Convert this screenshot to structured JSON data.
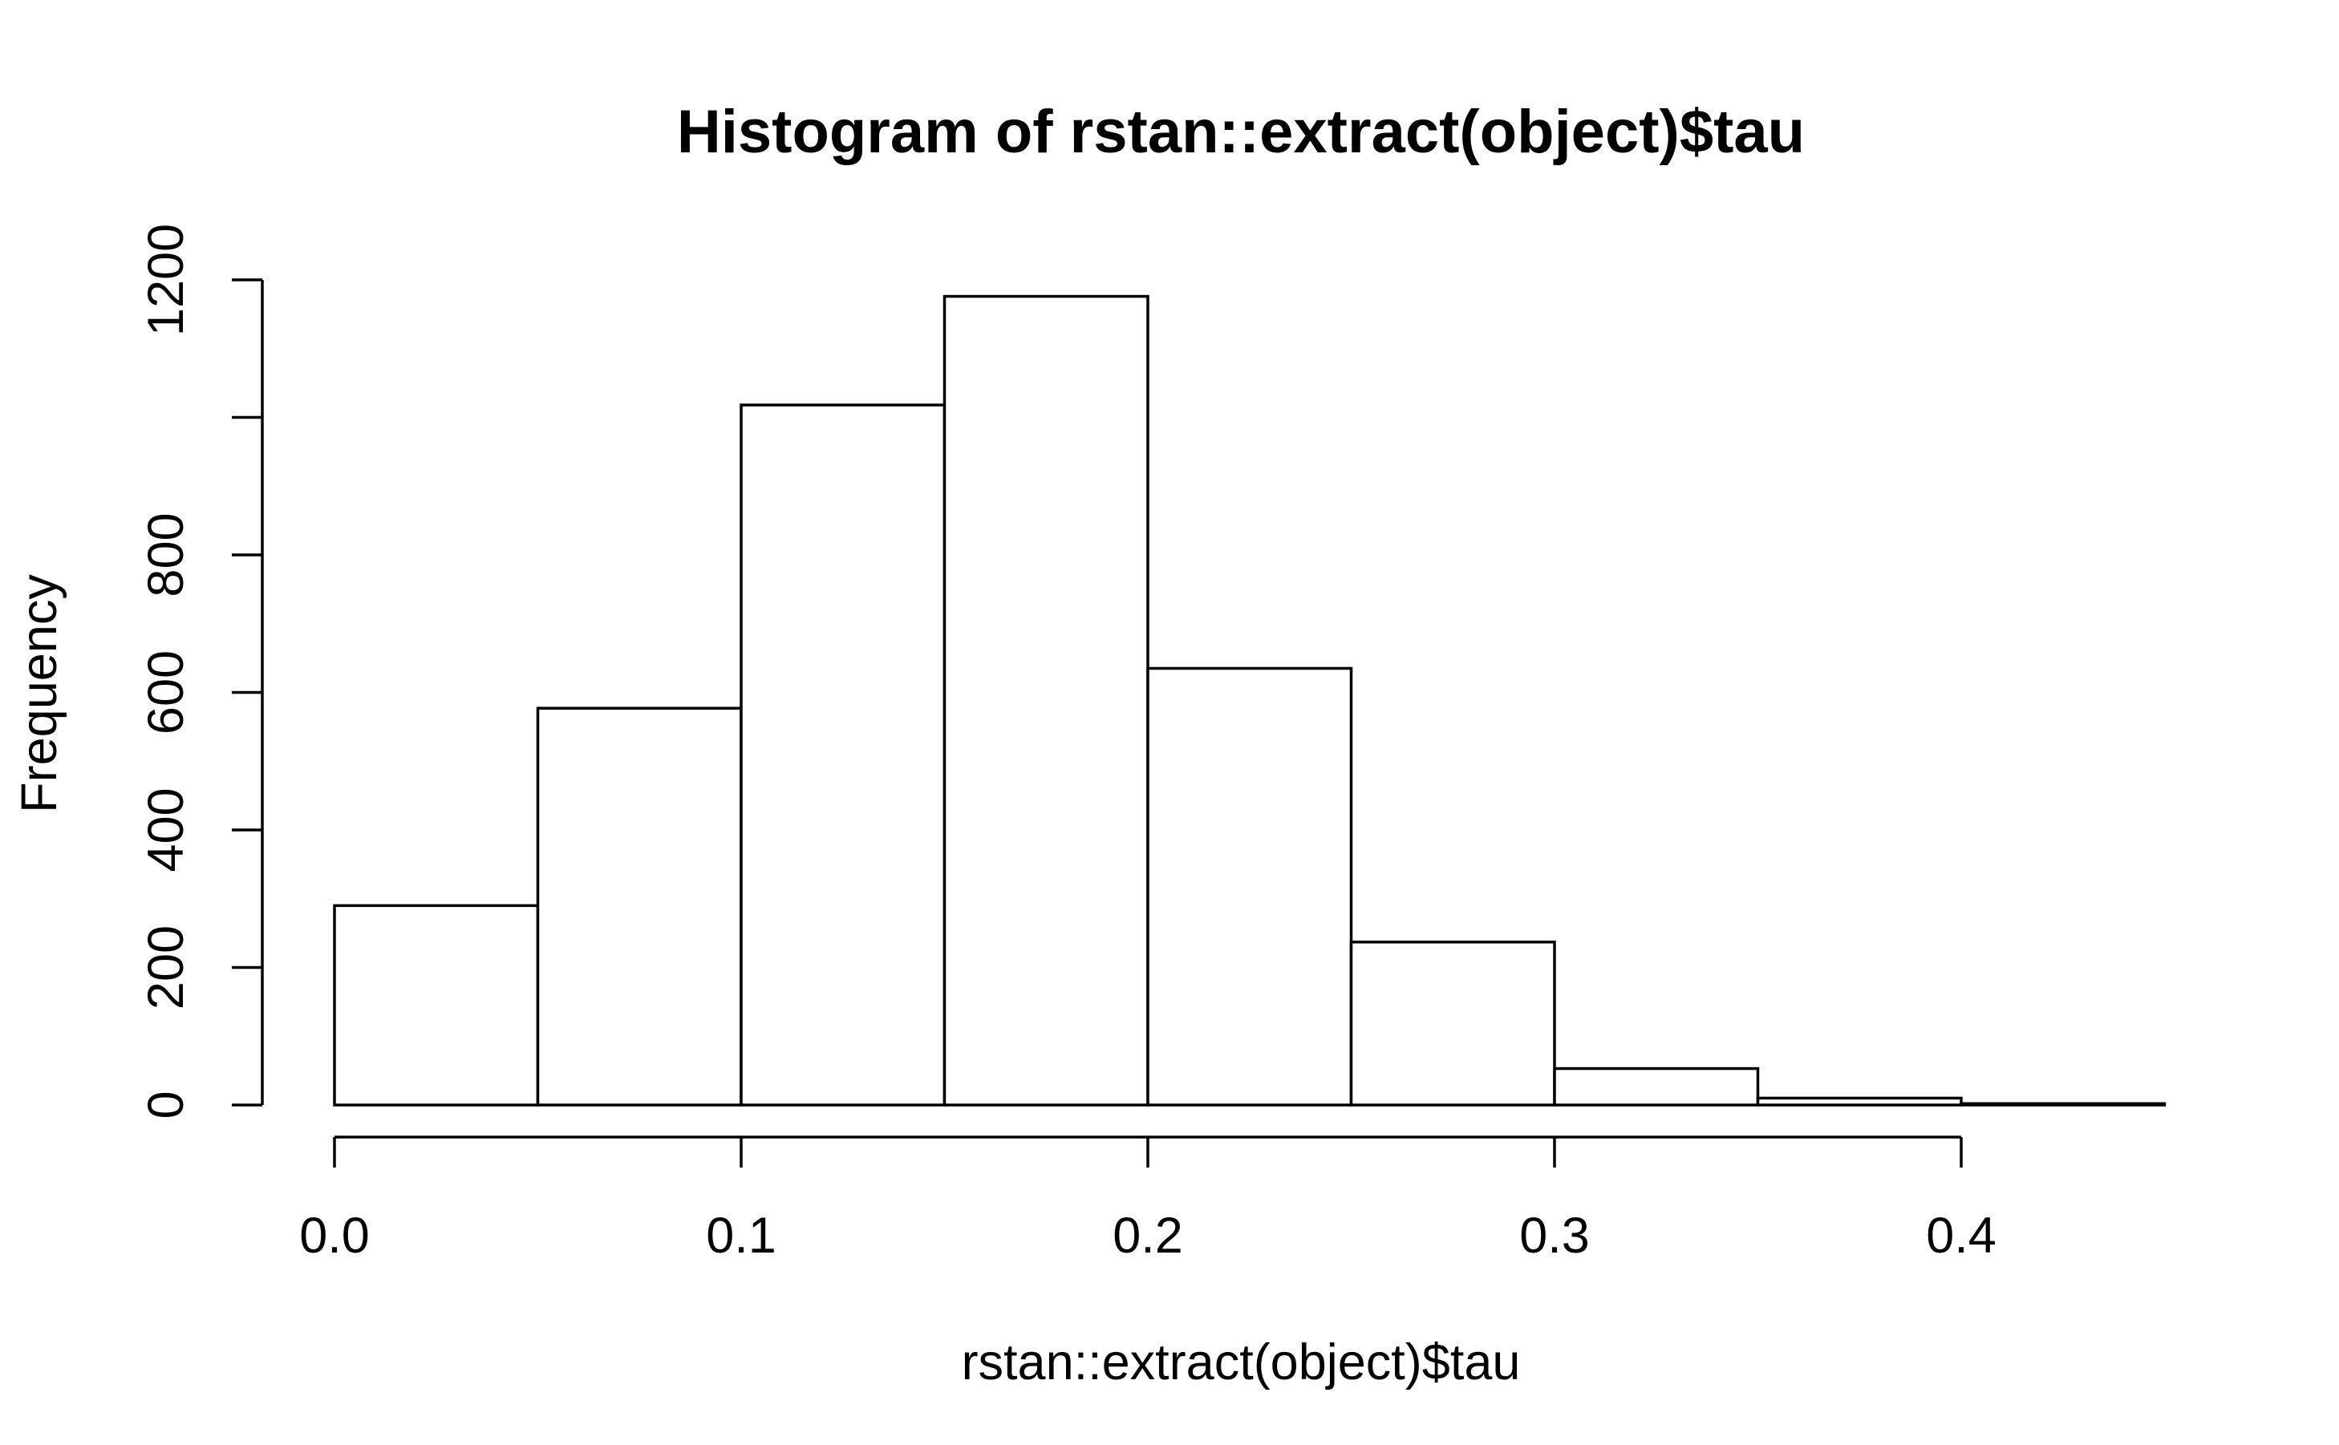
{
  "chart_data": {
    "type": "bar",
    "title": "Histogram of rstan::extract(object)$tau",
    "xlabel": "rstan::extract(object)$tau",
    "ylabel": "Frequency",
    "bins": [
      {
        "start": 0.0,
        "end": 0.05,
        "value": 290
      },
      {
        "start": 0.05,
        "end": 0.1,
        "value": 577
      },
      {
        "start": 0.1,
        "end": 0.15,
        "value": 1018
      },
      {
        "start": 0.15,
        "end": 0.2,
        "value": 1176
      },
      {
        "start": 0.2,
        "end": 0.25,
        "value": 635
      },
      {
        "start": 0.25,
        "end": 0.3,
        "value": 237
      },
      {
        "start": 0.3,
        "end": 0.35,
        "value": 53
      },
      {
        "start": 0.35,
        "end": 0.4,
        "value": 10
      },
      {
        "start": 0.4,
        "end": 0.45,
        "value": 2
      }
    ],
    "xlim": [
      0.0,
      0.45
    ],
    "ylim": [
      0,
      1200
    ],
    "x_ticks": [
      0.0,
      0.1,
      0.2,
      0.3,
      0.4
    ],
    "x_tick_labels": [
      "0.0",
      "0.1",
      "0.2",
      "0.3",
      "0.4"
    ],
    "y_ticks": [
      0,
      200,
      400,
      600,
      800,
      1000,
      1200
    ],
    "y_tick_labels": [
      "0",
      "200",
      "400",
      "600",
      "800",
      "",
      "1200"
    ],
    "grid": false,
    "bar_fill": "#ffffff",
    "bar_stroke": "#000000"
  }
}
